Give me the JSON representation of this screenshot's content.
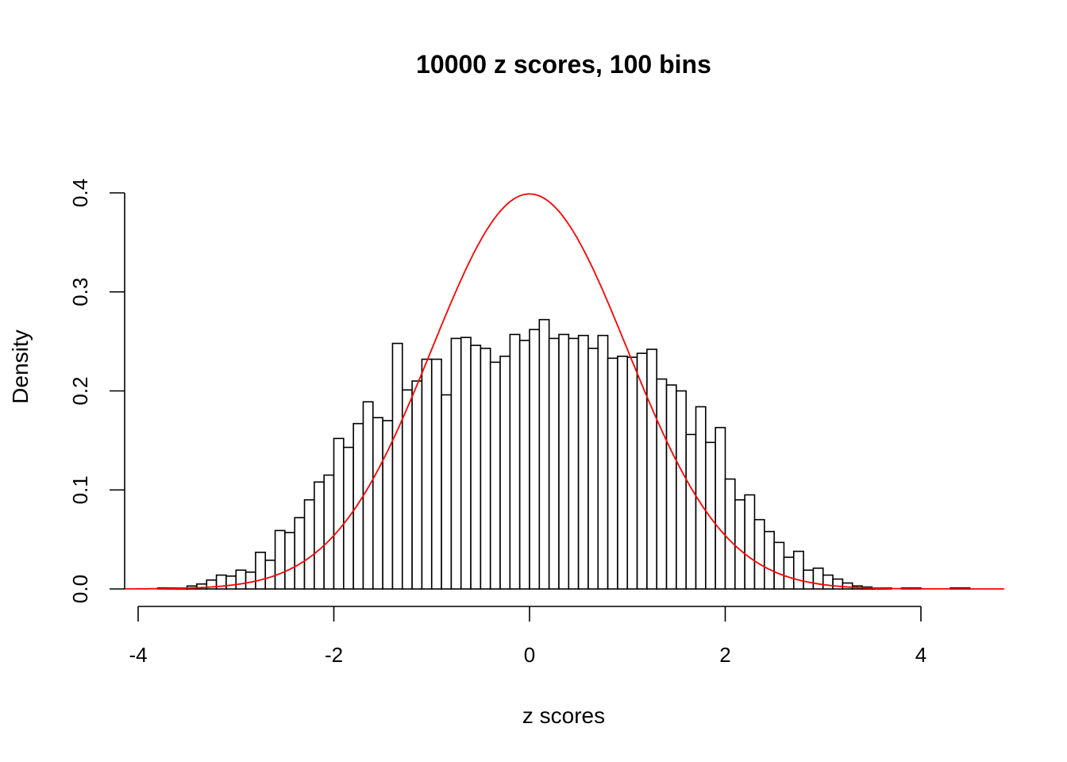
{
  "chart_data": {
    "type": "bar",
    "title": "10000 z scores, 100 bins",
    "xlabel": "z scores",
    "ylabel": "Density",
    "xlim": [
      -4.15,
      4.85
    ],
    "ylim": [
      0,
      0.4
    ],
    "x_ticks": [
      "-4",
      "-2",
      "0",
      "2",
      "4"
    ],
    "x_tick_values": [
      -4,
      -2,
      0,
      2,
      4
    ],
    "y_ticks": [
      "0.0",
      "0.1",
      "0.2",
      "0.3",
      "0.4"
    ],
    "y_tick_values": [
      0,
      0.1,
      0.2,
      0.3,
      0.4
    ],
    "grid": false,
    "histogram": {
      "bin_start": -3.8,
      "bin_width": 0.1,
      "density": [
        0.001,
        0.001,
        0.001,
        0.003,
        0.005,
        0.009,
        0.014,
        0.013,
        0.019,
        0.017,
        0.037,
        0.029,
        0.059,
        0.057,
        0.072,
        0.09,
        0.108,
        0.115,
        0.152,
        0.143,
        0.167,
        0.189,
        0.173,
        0.17,
        0.248,
        0.201,
        0.21,
        0.232,
        0.232,
        0.196,
        0.253,
        0.254,
        0.246,
        0.243,
        0.229,
        0.235,
        0.257,
        0.251,
        0.262,
        0.272,
        0.253,
        0.257,
        0.253,
        0.256,
        0.243,
        0.256,
        0.233,
        0.235,
        0.234,
        0.238,
        0.242,
        0.212,
        0.206,
        0.2,
        0.156,
        0.184,
        0.148,
        0.163,
        0.111,
        0.09,
        0.095,
        0.07,
        0.058,
        0.047,
        0.032,
        0.038,
        0.019,
        0.021,
        0.014,
        0.01,
        0.006,
        0.003,
        0.002,
        0.001,
        0.001,
        0,
        0.001,
        0.001,
        0,
        0,
        0,
        0.001,
        0.001
      ],
      "fill": "#ffffff",
      "stroke": "#000000"
    },
    "overlay_curve": {
      "type": "normal-density",
      "mean": 0,
      "sd": 1,
      "x_range": [
        -4.15,
        4.85
      ],
      "color": "#ff0000"
    }
  }
}
